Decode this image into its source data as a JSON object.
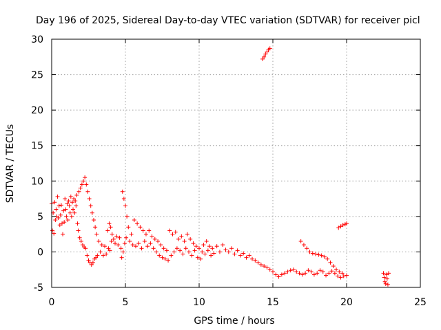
{
  "chart_data": {
    "type": "scatter",
    "title": "Day 196 of 2025, Sidereal Day-to-day VTEC variation (SDTVAR) for receiver picl",
    "xlabel": "GPS time / hours",
    "ylabel": "SDTVAR / TECUs",
    "xlim": [
      0,
      25
    ],
    "ylim": [
      -5,
      30
    ],
    "x_ticks": [
      0,
      5,
      10,
      15,
      20,
      25
    ],
    "y_ticks": [
      -5,
      0,
      5,
      10,
      15,
      20,
      25,
      30
    ],
    "x_tick_labels": [
      "0",
      "5",
      "10",
      "15",
      "20",
      "25"
    ],
    "y_tick_labels": [
      "-5",
      "0",
      "5",
      "10",
      "15",
      "20",
      "25",
      "30"
    ],
    "grid": true,
    "marker": "+",
    "color": "#ff0000",
    "series": [
      {
        "name": "SDTVAR",
        "points": [
          [
            0.0,
            6.8
          ],
          [
            0.05,
            3.0
          ],
          [
            0.1,
            5.5
          ],
          [
            0.15,
            2.6
          ],
          [
            0.2,
            7.0
          ],
          [
            0.25,
            4.5
          ],
          [
            0.3,
            6.0
          ],
          [
            0.35,
            5.0
          ],
          [
            0.4,
            7.8
          ],
          [
            0.45,
            4.8
          ],
          [
            0.5,
            6.5
          ],
          [
            0.55,
            3.8
          ],
          [
            0.6,
            5.2
          ],
          [
            0.65,
            6.6
          ],
          [
            0.7,
            4.0
          ],
          [
            0.75,
            2.5
          ],
          [
            0.8,
            5.8
          ],
          [
            0.85,
            4.2
          ],
          [
            0.9,
            7.5
          ],
          [
            0.95,
            6.0
          ],
          [
            1.0,
            5.0
          ],
          [
            1.05,
            6.8
          ],
          [
            1.1,
            4.5
          ],
          [
            1.15,
            7.2
          ],
          [
            1.2,
            6.5
          ],
          [
            1.25,
            5.5
          ],
          [
            1.3,
            7.8
          ],
          [
            1.35,
            5.0
          ],
          [
            1.4,
            7.0
          ],
          [
            1.45,
            6.0
          ],
          [
            1.5,
            7.5
          ],
          [
            1.55,
            5.5
          ],
          [
            1.6,
            7.2
          ],
          [
            1.65,
            6.5
          ],
          [
            1.7,
            8.0
          ],
          [
            1.75,
            4.0
          ],
          [
            1.8,
            3.0
          ],
          [
            1.85,
            8.5
          ],
          [
            1.9,
            2.0
          ],
          [
            1.95,
            9.0
          ],
          [
            2.0,
            1.5
          ],
          [
            2.05,
            9.5
          ],
          [
            2.1,
            1.0
          ],
          [
            2.15,
            10.0
          ],
          [
            2.2,
            0.7
          ],
          [
            2.25,
            10.5
          ],
          [
            2.3,
            0.5
          ],
          [
            2.35,
            9.5
          ],
          [
            2.4,
            -0.5
          ],
          [
            2.45,
            8.5
          ],
          [
            2.5,
            -1.2
          ],
          [
            2.55,
            7.5
          ],
          [
            2.6,
            -1.5
          ],
          [
            2.65,
            6.5
          ],
          [
            2.7,
            -1.8
          ],
          [
            2.75,
            5.5
          ],
          [
            2.8,
            -1.5
          ],
          [
            2.85,
            4.5
          ],
          [
            2.9,
            -1.0
          ],
          [
            2.95,
            3.5
          ],
          [
            3.0,
            -0.8
          ],
          [
            3.05,
            2.5
          ],
          [
            3.1,
            -0.5
          ],
          [
            3.2,
            1.5
          ],
          [
            3.3,
            0.0
          ],
          [
            3.4,
            1.0
          ],
          [
            3.5,
            -0.5
          ],
          [
            3.6,
            0.8
          ],
          [
            3.7,
            -0.3
          ],
          [
            3.8,
            3.0
          ],
          [
            3.85,
            0.5
          ],
          [
            3.9,
            4.0
          ],
          [
            3.95,
            0.2
          ],
          [
            4.0,
            3.5
          ],
          [
            4.05,
            1.5
          ],
          [
            4.1,
            2.5
          ],
          [
            4.2,
            1.8
          ],
          [
            4.3,
            1.2
          ],
          [
            4.4,
            2.2
          ],
          [
            4.5,
            1.0
          ],
          [
            4.6,
            2.0
          ],
          [
            4.7,
            0.5
          ],
          [
            4.75,
            -0.8
          ],
          [
            4.8,
            8.5
          ],
          [
            4.85,
            0.0
          ],
          [
            4.9,
            7.5
          ],
          [
            4.95,
            1.2
          ],
          [
            5.0,
            6.5
          ],
          [
            5.05,
            2.0
          ],
          [
            5.1,
            5.0
          ],
          [
            5.2,
            3.5
          ],
          [
            5.3,
            1.5
          ],
          [
            5.4,
            2.5
          ],
          [
            5.5,
            1.0
          ],
          [
            5.6,
            4.5
          ],
          [
            5.7,
            0.8
          ],
          [
            5.8,
            4.0
          ],
          [
            5.9,
            1.2
          ],
          [
            6.0,
            3.5
          ],
          [
            6.1,
            0.5
          ],
          [
            6.2,
            3.0
          ],
          [
            6.3,
            1.5
          ],
          [
            6.4,
            2.5
          ],
          [
            6.5,
            0.8
          ],
          [
            6.6,
            3.0
          ],
          [
            6.7,
            1.2
          ],
          [
            6.8,
            2.2
          ],
          [
            6.9,
            0.5
          ],
          [
            7.0,
            1.8
          ],
          [
            7.1,
            0.0
          ],
          [
            7.2,
            1.5
          ],
          [
            7.3,
            -0.5
          ],
          [
            7.4,
            1.0
          ],
          [
            7.5,
            -0.8
          ],
          [
            7.6,
            0.5
          ],
          [
            7.7,
            -1.0
          ],
          [
            7.8,
            0.2
          ],
          [
            7.9,
            -1.2
          ],
          [
            8.0,
            3.0
          ],
          [
            8.1,
            -0.5
          ],
          [
            8.2,
            2.5
          ],
          [
            8.3,
            0.0
          ],
          [
            8.4,
            2.8
          ],
          [
            8.5,
            0.5
          ],
          [
            8.6,
            1.8
          ],
          [
            8.7,
            0.2
          ],
          [
            8.8,
            2.2
          ],
          [
            8.9,
            -0.3
          ],
          [
            9.0,
            1.5
          ],
          [
            9.1,
            0.5
          ],
          [
            9.2,
            2.5
          ],
          [
            9.3,
            0.0
          ],
          [
            9.4,
            1.8
          ],
          [
            9.5,
            -0.5
          ],
          [
            9.6,
            1.2
          ],
          [
            9.7,
            0.2
          ],
          [
            9.8,
            0.8
          ],
          [
            9.9,
            -0.8
          ],
          [
            10.0,
            0.5
          ],
          [
            10.1,
            -1.0
          ],
          [
            10.2,
            0.0
          ],
          [
            10.3,
            1.0
          ],
          [
            10.4,
            -0.3
          ],
          [
            10.5,
            1.5
          ],
          [
            10.6,
            0.2
          ],
          [
            10.7,
            0.8
          ],
          [
            10.8,
            -0.5
          ],
          [
            10.9,
            0.5
          ],
          [
            11.0,
            -0.2
          ],
          [
            11.2,
            0.8
          ],
          [
            11.4,
            0.0
          ],
          [
            11.6,
            1.0
          ],
          [
            11.8,
            0.3
          ],
          [
            12.0,
            0.0
          ],
          [
            12.2,
            0.5
          ],
          [
            12.4,
            -0.3
          ],
          [
            12.6,
            0.2
          ],
          [
            12.8,
            -0.5
          ],
          [
            13.0,
            -0.2
          ],
          [
            13.2,
            -0.8
          ],
          [
            13.4,
            -0.5
          ],
          [
            13.6,
            -1.0
          ],
          [
            13.8,
            -1.2
          ],
          [
            14.0,
            -1.5
          ],
          [
            14.2,
            -1.8
          ],
          [
            14.4,
            -2.0
          ],
          [
            14.6,
            -2.2
          ],
          [
            14.8,
            -2.5
          ],
          [
            15.0,
            -2.8
          ],
          [
            15.2,
            -3.2
          ],
          [
            15.4,
            -3.5
          ],
          [
            15.6,
            -3.2
          ],
          [
            15.8,
            -3.0
          ],
          [
            16.0,
            -2.8
          ],
          [
            16.2,
            -2.6
          ],
          [
            16.4,
            -2.5
          ],
          [
            16.6,
            -2.8
          ],
          [
            16.8,
            -3.0
          ],
          [
            17.0,
            -3.2
          ],
          [
            17.2,
            -3.0
          ],
          [
            17.4,
            -2.6
          ],
          [
            17.6,
            -2.8
          ],
          [
            17.8,
            -3.2
          ],
          [
            18.0,
            -3.0
          ],
          [
            18.2,
            -2.6
          ],
          [
            18.4,
            -2.8
          ],
          [
            18.6,
            -3.3
          ],
          [
            18.8,
            -3.0
          ],
          [
            19.0,
            -2.7
          ],
          [
            19.2,
            -3.0
          ],
          [
            19.4,
            -3.4
          ],
          [
            19.6,
            -3.6
          ],
          [
            19.8,
            -3.4
          ],
          [
            20.0,
            -3.3
          ],
          [
            16.9,
            1.5
          ],
          [
            17.1,
            1.0
          ],
          [
            17.3,
            0.5
          ],
          [
            17.5,
            0.0
          ],
          [
            17.7,
            -0.2
          ],
          [
            17.9,
            -0.3
          ],
          [
            18.1,
            -0.4
          ],
          [
            18.3,
            -0.5
          ],
          [
            18.5,
            -0.7
          ],
          [
            18.7,
            -1.0
          ],
          [
            18.9,
            -1.5
          ],
          [
            19.1,
            -2.0
          ],
          [
            19.3,
            -2.5
          ],
          [
            19.5,
            -2.8
          ],
          [
            19.7,
            -3.0
          ],
          [
            19.45,
            3.4
          ],
          [
            19.6,
            3.6
          ],
          [
            19.75,
            3.8
          ],
          [
            19.9,
            3.9
          ],
          [
            20.0,
            4.0
          ],
          [
            14.3,
            27.2
          ],
          [
            14.4,
            27.5
          ],
          [
            14.5,
            27.9
          ],
          [
            14.6,
            28.2
          ],
          [
            14.7,
            28.5
          ],
          [
            14.8,
            28.7
          ],
          [
            22.5,
            -3.0
          ],
          [
            22.55,
            -3.6
          ],
          [
            22.6,
            -4.2
          ],
          [
            22.65,
            -4.5
          ],
          [
            22.7,
            -3.2
          ],
          [
            22.75,
            -3.8
          ],
          [
            22.8,
            -4.6
          ],
          [
            22.85,
            -3.0
          ]
        ]
      }
    ]
  }
}
